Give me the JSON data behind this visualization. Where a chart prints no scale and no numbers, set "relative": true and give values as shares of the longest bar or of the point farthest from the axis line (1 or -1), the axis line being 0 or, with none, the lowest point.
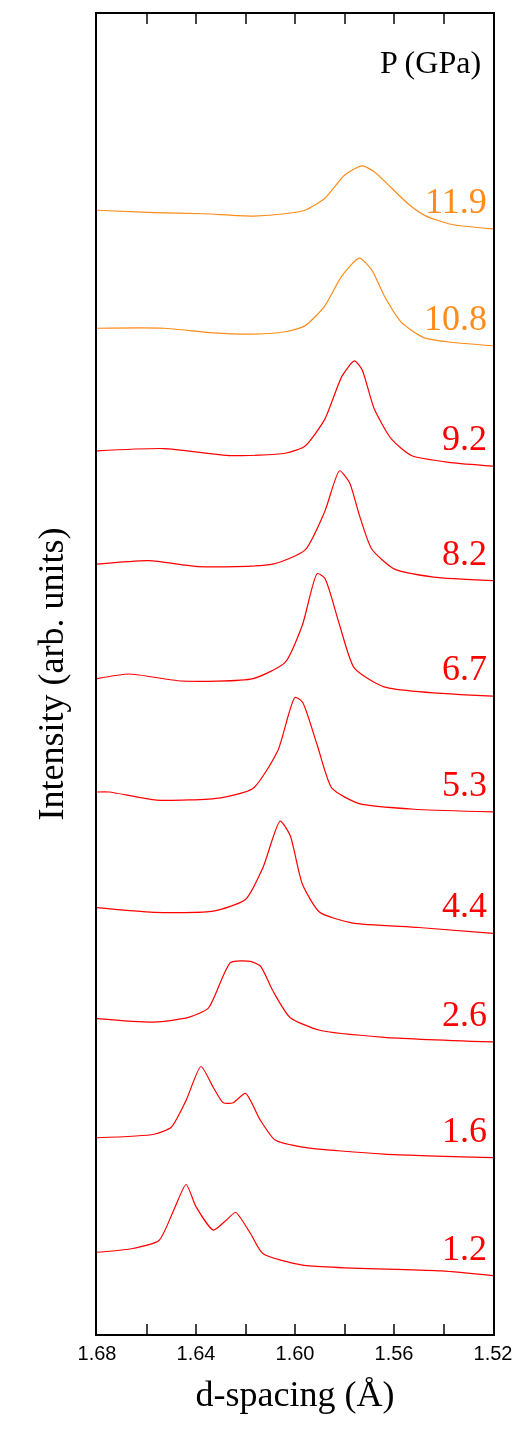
{
  "chart_data": {
    "type": "line",
    "relative": true,
    "xlabel": "d-spacing (Å)",
    "ylabel": "Intensity (arb. units)",
    "legend_title": "P (GPa)",
    "xlim": [
      1.68,
      1.52
    ],
    "xticks": [
      1.68,
      {
        "value": 1.66,
        "label": null
      },
      1.64,
      {
        "value": 1.62,
        "label": null
      },
      {
        "value": 1.6,
        "label": "1.60"
      },
      {
        "value": 1.58,
        "label": null
      },
      1.56,
      {
        "value": 1.54,
        "label": null
      },
      1.52
    ],
    "series": [
      {
        "name": "11.9",
        "color": "#ff8c1a",
        "x": [
          1.68,
          1.657,
          1.637,
          1.617,
          1.604,
          1.596,
          1.588,
          1.58,
          1.573,
          1.568,
          1.561,
          1.554,
          1.547,
          1.537,
          1.52
        ],
        "values": [
          0.962,
          0.96,
          0.959,
          0.957,
          0.959,
          0.962,
          0.972,
          0.992,
          1.0,
          0.995,
          0.981,
          0.967,
          0.957,
          0.95,
          0.946
        ]
      },
      {
        "name": "10.8",
        "color": "#ff8c1a",
        "x": [
          1.68,
          1.653,
          1.633,
          1.617,
          1.604,
          1.596,
          1.588,
          1.581,
          1.574,
          1.569,
          1.564,
          1.557,
          1.548,
          1.537,
          1.52
        ],
        "values": [
          0.861,
          0.861,
          0.857,
          0.856,
          0.858,
          0.863,
          0.88,
          0.906,
          0.921,
          0.911,
          0.889,
          0.866,
          0.853,
          0.849,
          0.846
        ]
      },
      {
        "name": "9.2",
        "color": "#ff0000",
        "x": [
          1.68,
          1.653,
          1.626,
          1.604,
          1.596,
          1.588,
          1.581,
          1.576,
          1.573,
          1.568,
          1.561,
          1.553,
          1.537,
          1.52
        ],
        "values": [
          0.756,
          0.758,
          0.752,
          0.754,
          0.76,
          0.783,
          0.82,
          0.833,
          0.826,
          0.792,
          0.766,
          0.752,
          0.746,
          0.743
        ]
      },
      {
        "name": "8.2",
        "color": "#ff0000",
        "x": [
          1.68,
          1.659,
          1.639,
          1.609,
          1.596,
          1.588,
          1.582,
          1.578,
          1.574,
          1.569,
          1.56,
          1.544,
          1.52
        ],
        "values": [
          0.659,
          0.662,
          0.657,
          0.659,
          0.671,
          0.704,
          0.739,
          0.729,
          0.701,
          0.672,
          0.655,
          0.648,
          0.645
        ]
      },
      {
        "name": "6.7",
        "color": "#ff0000",
        "x": [
          1.68,
          1.667,
          1.646,
          1.617,
          1.604,
          1.597,
          1.591,
          1.588,
          1.582,
          1.576,
          1.564,
          1.52
        ],
        "values": [
          0.561,
          0.565,
          0.559,
          0.561,
          0.575,
          0.607,
          0.651,
          0.647,
          0.607,
          0.57,
          0.554,
          0.546
        ]
      },
      {
        "name": "5.3",
        "color": "#ff0000",
        "x": [
          1.68,
          1.675,
          1.656,
          1.63,
          1.617,
          1.607,
          1.6,
          1.597,
          1.591,
          1.585,
          1.574,
          1.55,
          1.52
        ],
        "values": [
          0.464,
          0.464,
          0.457,
          0.459,
          0.467,
          0.499,
          0.545,
          0.541,
          0.504,
          0.467,
          0.454,
          0.449,
          0.447
        ]
      },
      {
        "name": "4.4",
        "color": "#ff0000",
        "x": [
          1.68,
          1.657,
          1.633,
          1.62,
          1.613,
          1.606,
          1.602,
          1.597,
          1.59,
          1.577,
          1.55,
          1.52
        ],
        "values": [
          0.365,
          0.361,
          0.362,
          0.372,
          0.399,
          0.439,
          0.427,
          0.385,
          0.361,
          0.352,
          0.348,
          0.343
        ]
      },
      {
        "name": "2.6",
        "color": "#ff0000",
        "x": [
          1.68,
          1.657,
          1.643,
          1.635,
          1.626,
          1.618,
          1.614,
          1.609,
          1.602,
          1.59,
          1.564,
          1.52
        ],
        "values": [
          0.27,
          0.267,
          0.271,
          0.279,
          0.318,
          0.319,
          0.315,
          0.294,
          0.271,
          0.26,
          0.254,
          0.25
        ]
      },
      {
        "name": "1.6",
        "color": "#ff0000",
        "x": [
          1.68,
          1.657,
          1.65,
          1.644,
          1.638,
          1.633,
          1.629,
          1.625,
          1.62,
          1.614,
          1.608,
          1.597,
          1.564,
          1.52
        ],
        "values": [
          0.168,
          0.171,
          0.177,
          0.2,
          0.229,
          0.211,
          0.198,
          0.198,
          0.206,
          0.183,
          0.166,
          0.16,
          0.154,
          0.151
        ]
      },
      {
        "name": "1.2",
        "color": "#ff0000",
        "x": [
          1.68,
          1.666,
          1.655,
          1.649,
          1.644,
          1.64,
          1.633,
          1.628,
          1.624,
          1.618,
          1.613,
          1.597,
          1.541,
          1.52
        ],
        "values": [
          0.07,
          0.073,
          0.08,
          0.106,
          0.128,
          0.109,
          0.089,
          0.097,
          0.104,
          0.086,
          0.069,
          0.059,
          0.054,
          0.05
        ]
      }
    ]
  }
}
